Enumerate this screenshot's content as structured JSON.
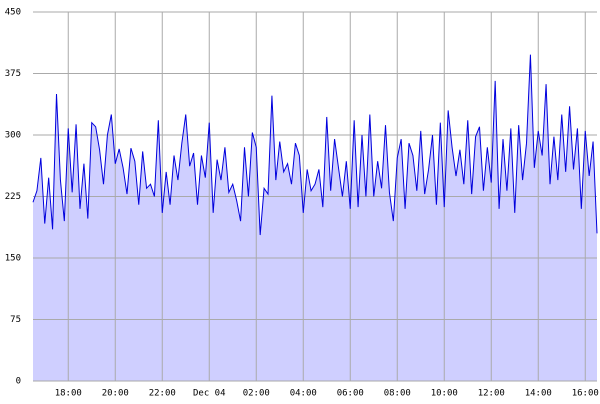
{
  "chart_data": {
    "type": "area",
    "x": [
      990,
      1000,
      1010,
      1020,
      1030,
      1040,
      1050,
      1060,
      1070,
      1080,
      1090,
      1100,
      1110,
      1120,
      1130,
      1140,
      1150,
      1160,
      1170,
      1180,
      1190,
      1200,
      1210,
      1220,
      1230,
      1240,
      1250,
      1260,
      1270,
      1280,
      1290,
      1300,
      1310,
      1320,
      1330,
      1340,
      1350,
      1360,
      1370,
      1380,
      1390,
      1400,
      1410,
      1420,
      1430,
      1440,
      1450,
      1460,
      1470,
      1480,
      1490,
      1500,
      1510,
      1520,
      1530,
      1540,
      1550,
      1560,
      1570,
      1580,
      1590,
      1600,
      1610,
      1620,
      1630,
      1640,
      1650,
      1660,
      1670,
      1680,
      1690,
      1700,
      1710,
      1720,
      1730,
      1740,
      1750,
      1760,
      1770,
      1780,
      1790,
      1800,
      1810,
      1820,
      1830,
      1840,
      1850,
      1860,
      1870,
      1880,
      1890,
      1900,
      1910,
      1920,
      1930,
      1940,
      1950,
      1960,
      1970,
      1980,
      1990,
      2000,
      2010,
      2020,
      2030,
      2040,
      2050,
      2060,
      2070,
      2080,
      2090,
      2100,
      2110,
      2120,
      2130,
      2140,
      2150,
      2160,
      2170,
      2180,
      2190,
      2200,
      2210,
      2220,
      2230,
      2240,
      2250,
      2260,
      2270,
      2280,
      2290,
      2300,
      2310,
      2320,
      2330,
      2340,
      2350,
      2360,
      2370,
      2380,
      2390,
      2400,
      2410,
      2420,
      2430
    ],
    "values": [
      218,
      232,
      272,
      192,
      248,
      185,
      350,
      245,
      195,
      308,
      230,
      313,
      210,
      265,
      198,
      315,
      310,
      282,
      240,
      300,
      325,
      265,
      283,
      260,
      228,
      284,
      268,
      215,
      280,
      235,
      240,
      225,
      318,
      205,
      255,
      215,
      275,
      245,
      290,
      325,
      262,
      278,
      215,
      275,
      248,
      315,
      205,
      270,
      245,
      285,
      230,
      240,
      220,
      195,
      285,
      225,
      303,
      285,
      178,
      235,
      228,
      348,
      245,
      292,
      255,
      265,
      240,
      290,
      275,
      205,
      258,
      232,
      240,
      258,
      212,
      322,
      232,
      295,
      260,
      225,
      268,
      210,
      318,
      212,
      300,
      225,
      325,
      225,
      268,
      235,
      312,
      230,
      195,
      272,
      295,
      210,
      290,
      275,
      232,
      305,
      228,
      258,
      300,
      215,
      315,
      212,
      330,
      285,
      250,
      282,
      240,
      318,
      228,
      298,
      310,
      232,
      285,
      242,
      366,
      210,
      295,
      232,
      308,
      205,
      312,
      245,
      290,
      398,
      260,
      305,
      275,
      362,
      240,
      298,
      245,
      325,
      255,
      335,
      258,
      308,
      210,
      305,
      250,
      292,
      180
    ],
    "color": "#0000dd",
    "fill": "#ccccff",
    "xlim": [
      990,
      2430
    ],
    "xticks": [
      {
        "value": 1080,
        "label": "18:00"
      },
      {
        "value": 1200,
        "label": "20:00"
      },
      {
        "value": 1320,
        "label": "22:00"
      },
      {
        "value": 1440,
        "label": "Dec 04"
      },
      {
        "value": 1560,
        "label": "02:00"
      },
      {
        "value": 1680,
        "label": "04:00"
      },
      {
        "value": 1800,
        "label": "06:00"
      },
      {
        "value": 1920,
        "label": "08:00"
      },
      {
        "value": 2040,
        "label": "10:00"
      },
      {
        "value": 2160,
        "label": "12:00"
      },
      {
        "value": 2280,
        "label": "14:00"
      },
      {
        "value": 2400,
        "label": "16:00"
      }
    ],
    "ylim": [
      0,
      450
    ],
    "yticks": [
      0,
      75,
      150,
      225,
      300,
      375,
      450
    ],
    "grid": true
  }
}
